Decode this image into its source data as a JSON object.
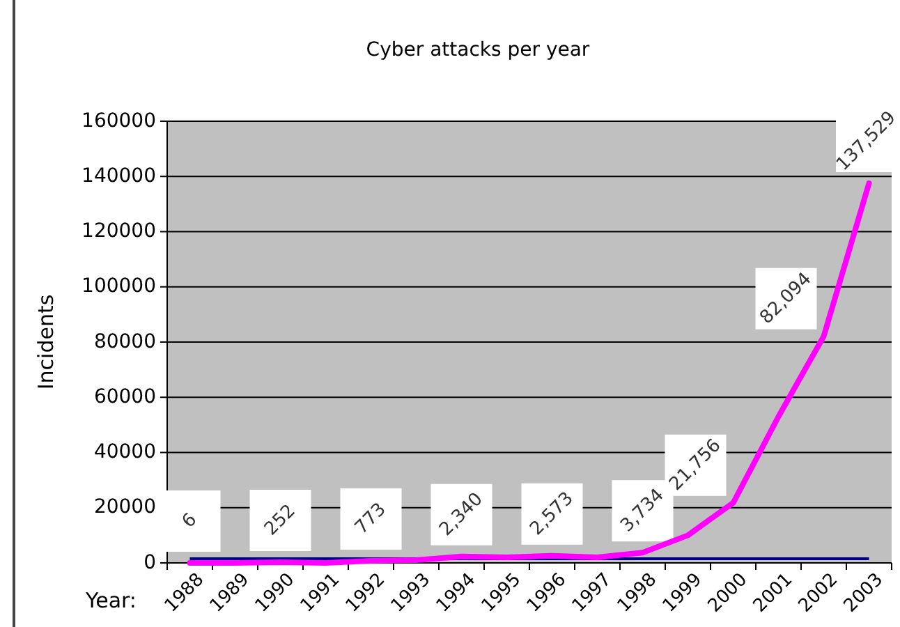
{
  "chart_data": {
    "type": "line",
    "title": "Cyber attacks per year",
    "xlabel": "Year:",
    "ylabel": "Incidents",
    "categories": [
      "1988",
      "1989",
      "1990",
      "1991",
      "1992",
      "1993",
      "1994",
      "1995",
      "1996",
      "1997",
      "1998",
      "1999",
      "2000",
      "2001",
      "2002",
      "2003"
    ],
    "series": [
      {
        "color": "#ff00ff",
        "values": [
          6,
          0,
          252,
          0,
          773,
          1000,
          2340,
          2000,
          2573,
          2000,
          3734,
          10000,
          21756,
          53000,
          82094,
          137529
        ],
        "value_labels": [
          "6",
          null,
          "252",
          null,
          "773",
          null,
          "2,340",
          null,
          "2,573",
          null,
          "3,734",
          null,
          "21,756",
          null,
          "82,094",
          "137,529"
        ]
      }
    ],
    "ref_lines": [
      {
        "axis": "y",
        "value": 1500,
        "color": "#000080"
      }
    ],
    "ylim": [
      0,
      160000
    ],
    "yticks": [
      0,
      20000,
      40000,
      60000,
      80000,
      100000,
      120000,
      140000,
      160000
    ],
    "grid": "y",
    "marker": "none",
    "line_style": "solid"
  }
}
